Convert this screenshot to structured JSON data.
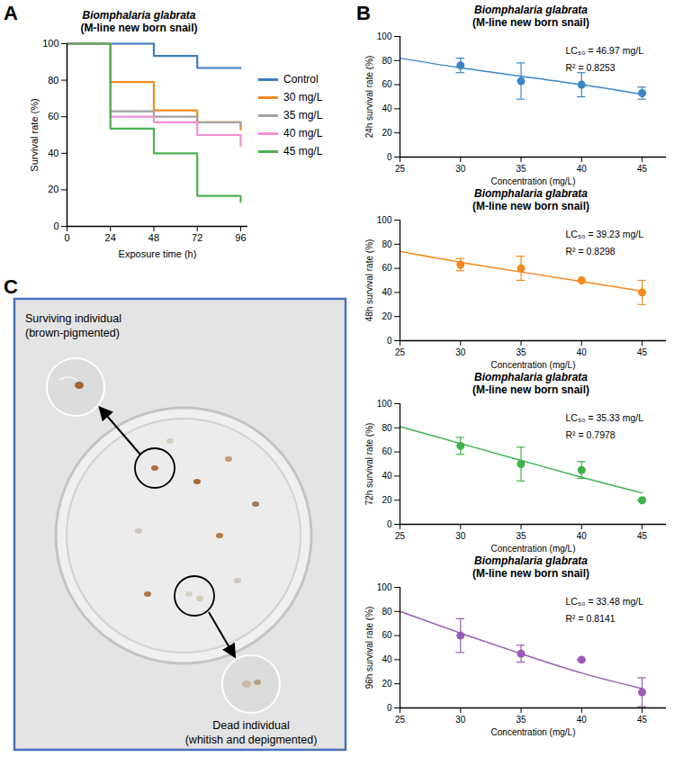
{
  "chart_data": [
    {
      "panel": "A",
      "type": "line",
      "line_style": "step",
      "title": "Biomphalaria glabrata",
      "subtitle": "(M-line new born snail)",
      "x_label": "Exposure time (h)",
      "y_label": "Survival rate (%)",
      "x": [
        0,
        24,
        48,
        72,
        96
      ],
      "series": [
        {
          "name": "Control",
          "color": "#3b7dc4",
          "values": [
            100,
            100,
            93.3,
            86.7,
            86.7
          ]
        },
        {
          "name": "30 mg/L",
          "color": "#f28a1e",
          "values": [
            100,
            79,
            63.5,
            57,
            53
          ]
        },
        {
          "name": "35 mg/L",
          "color": "#a3a3a3",
          "values": [
            100,
            63,
            60,
            57,
            55
          ]
        },
        {
          "name": "40 mg/L",
          "color": "#f28fd3",
          "values": [
            100,
            60,
            57,
            50,
            44
          ]
        },
        {
          "name": "45 mg/L",
          "color": "#4caf50",
          "values": [
            100,
            53.5,
            40,
            16.7,
            13.5
          ]
        }
      ],
      "xlim": [
        0,
        100
      ],
      "xticks": [
        0,
        24,
        48,
        72,
        96
      ],
      "ylim": [
        0,
        100
      ],
      "yticks": [
        0,
        20,
        40,
        60,
        80,
        100
      ],
      "legend": "right"
    },
    {
      "panel": "B",
      "type": "scatter",
      "title": "Biomphalaria glabrata",
      "subtitle": "(M-line new born snail)",
      "x_label": "Concentration (mg/L)",
      "y_label": "24h survival rate (%)",
      "x": [
        30,
        35,
        40,
        45
      ],
      "values": [
        76,
        63,
        60,
        53
      ],
      "error": [
        6,
        15,
        10,
        5
      ],
      "fit": {
        "x": [
          25,
          30,
          35,
          40,
          45
        ],
        "values": [
          82,
          74,
          67,
          60,
          52
        ]
      },
      "color": "#3a86c8",
      "annotations": [
        "LC₅₀ = 46.97 mg/L",
        "R² = 0.8253"
      ],
      "xlim": [
        25,
        47
      ],
      "xticks": [
        25,
        30,
        35,
        40,
        45
      ],
      "ylim": [
        0,
        100
      ],
      "yticks": [
        0,
        20,
        40,
        60,
        80,
        100
      ]
    },
    {
      "type": "scatter",
      "title": "Biomphalaria glabrata",
      "subtitle": "(M-line new born snail)",
      "x_label": "Concentration (mg/L)",
      "y_label": "48h survival rate (%)",
      "x": [
        30,
        35,
        40,
        45
      ],
      "values": [
        63,
        60,
        50,
        40
      ],
      "error": [
        5,
        10,
        0,
        10
      ],
      "fit": {
        "x": [
          25,
          30,
          35,
          40,
          45
        ],
        "values": [
          74,
          65,
          57,
          49,
          41
        ]
      },
      "color": "#f28a1e",
      "annotations": [
        "LC₅₀ = 39.23 mg/L",
        "R² = 0.8298"
      ],
      "xlim": [
        25,
        47
      ],
      "xticks": [
        25,
        30,
        35,
        40,
        45
      ],
      "ylim": [
        0,
        100
      ],
      "yticks": [
        0,
        20,
        40,
        60,
        80,
        100
      ]
    },
    {
      "type": "scatter",
      "title": "Biomphalaria glabrata",
      "subtitle": "(M-line new born snail)",
      "x_label": "Concentration (mg/L)",
      "y_label": "72h survival rate (%)",
      "x": [
        30,
        35,
        40,
        45
      ],
      "values": [
        65,
        50,
        45,
        20
      ],
      "error": [
        7,
        14,
        7,
        0
      ],
      "fit": {
        "x": [
          25,
          30,
          35,
          40,
          45
        ],
        "values": [
          81,
          67,
          53,
          39,
          26
        ]
      },
      "color": "#3cb44b",
      "annotations": [
        "LC₅₀ = 35.33 mg/L",
        "R² = 0.7978"
      ],
      "xlim": [
        25,
        47
      ],
      "xticks": [
        25,
        30,
        35,
        40,
        45
      ],
      "ylim": [
        0,
        100
      ],
      "yticks": [
        0,
        20,
        40,
        60,
        80,
        100
      ]
    },
    {
      "type": "scatter",
      "title": "Biomphalaria glabrata",
      "subtitle": "(M-line new born snail)",
      "x_label": "Concentration (mg/L)",
      "y_label": "96h survival rate (%)",
      "x": [
        30,
        35,
        40,
        45
      ],
      "values": [
        60,
        45,
        40,
        13
      ],
      "error": [
        14,
        7,
        0,
        12
      ],
      "fit": {
        "x": [
          25,
          30,
          35,
          40,
          45
        ],
        "values": [
          80,
          62,
          45,
          29,
          16
        ]
      },
      "color": "#9b59b6",
      "annotations": [
        "LC₅₀ = 33.48 mg/L",
        "R² = 0.8141"
      ],
      "xlim": [
        25,
        47
      ],
      "xticks": [
        25,
        30,
        35,
        40,
        45
      ],
      "ylim": [
        0,
        100
      ],
      "yticks": [
        0,
        20,
        40,
        60,
        80,
        100
      ]
    }
  ],
  "image": {
    "panel": "C",
    "labels": [
      [
        "Surviving individual",
        "(brown-pigmented)"
      ],
      [
        "Dead individual",
        "(whitish and depigmented)"
      ]
    ]
  }
}
